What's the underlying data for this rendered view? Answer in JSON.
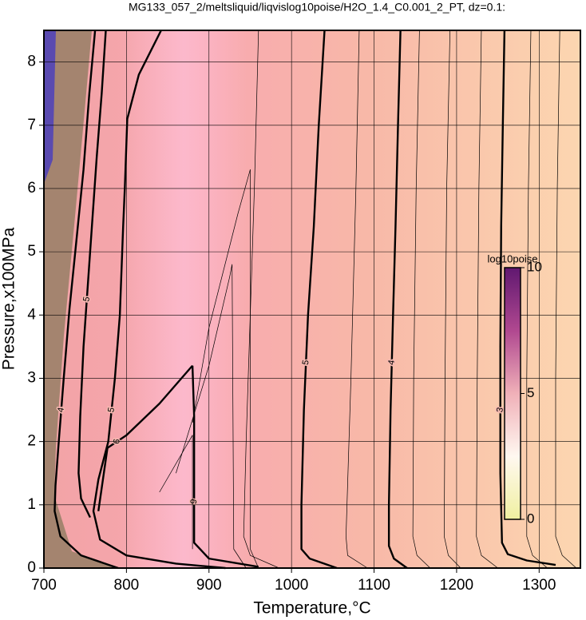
{
  "chart_data": {
    "type": "contour",
    "title": "MG133_057_2/meltsliquid/liqvislog10poise/H2O_1.4_C0.001_2_PT, dz=0.1:",
    "xlabel": "Temperature,°C",
    "ylabel": "Pressure,x100MPa",
    "xlim": [
      700,
      1350
    ],
    "ylim": [
      0,
      8.5
    ],
    "xticks": [
      700,
      800,
      900,
      1000,
      1100,
      1200,
      1300
    ],
    "yticks": [
      0,
      1,
      2,
      3,
      4,
      5,
      6,
      7,
      8
    ],
    "grid": true,
    "colorbar": {
      "label": "log10poise",
      "lim": [
        0,
        10
      ],
      "ticks": [
        0,
        5,
        10
      ],
      "colors": [
        "#f0f0a0",
        "#fff8f0",
        "#f0b0b8",
        "#b04890",
        "#601870"
      ]
    },
    "contours": [
      {
        "level": 3,
        "bold": true,
        "x": [
          1258,
          1256,
          1254,
          1253,
          1253,
          1255,
          1262,
          1285,
          1320
        ],
        "y": [
          8.5,
          7,
          5.4,
          3.5,
          1.5,
          0.4,
          0.22,
          0.12,
          0.05
        ]
      },
      {
        "level": 4,
        "bold": true,
        "x": [
          1132,
          1129,
          1126,
          1123,
          1120,
          1118,
          1118,
          1124,
          1140
        ],
        "y": [
          8.5,
          7,
          5.4,
          4,
          2.5,
          1,
          0.35,
          0.15,
          0
        ]
      },
      {
        "level": 5,
        "bold": true,
        "x": [
          1040,
          1033,
          1027,
          1020,
          1015,
          1012,
          1012,
          1022,
          1055
        ],
        "y": [
          8.5,
          7,
          5.4,
          4,
          2.5,
          1,
          0.3,
          0.15,
          0
        ]
      },
      {
        "level": 5,
        "bold": true,
        "x": [
          842,
          815,
          801,
          798,
          796,
          792,
          786,
          778,
          766,
          760,
          768,
          800,
          860,
          920
        ],
        "y": [
          8.5,
          7.8,
          7.1,
          6,
          5.4,
          4,
          3,
          2,
          1.4,
          0.9,
          0.45,
          0.2,
          0.07,
          0
        ]
      },
      {
        "level": 6,
        "bold": true,
        "x": [
          766,
          777,
          800,
          840,
          880
        ],
        "y": [
          0.9,
          1.9,
          2.1,
          2.6,
          3.2
        ]
      },
      {
        "level": 9,
        "bold": true,
        "x": [
          880,
          882,
          882,
          882,
          900,
          960
        ],
        "y": [
          3.2,
          2.4,
          1.7,
          0.4,
          0.15,
          0.02
        ]
      },
      {
        "level": 4,
        "bold": true,
        "x": [
          762,
          755,
          748,
          738,
          731,
          724,
          718,
          714,
          713,
          720,
          745,
          790
        ],
        "y": [
          8.5,
          7.5,
          6.3,
          5,
          4.1,
          3,
          2,
          1.3,
          0.9,
          0.5,
          0.2,
          0
        ]
      },
      {
        "level": 5,
        "bold": true,
        "x": [
          775,
          770,
          764,
          756,
          748,
          744,
          742,
          745,
          756
        ],
        "y": [
          8.5,
          7.5,
          6.5,
          5,
          3.5,
          2.4,
          1.5,
          1.1,
          0.8
        ]
      },
      {
        "level": 3.5,
        "bold": false,
        "x": [
          1192,
          1188,
          1186,
          1185,
          1190,
          1205
        ],
        "y": [
          8.5,
          6,
          3,
          0.5,
          0.2,
          0
        ]
      },
      {
        "level": 3.8,
        "bold": false,
        "x": [
          1155,
          1151,
          1148,
          1147,
          1152,
          1168
        ],
        "y": [
          8.5,
          6,
          3,
          0.5,
          0.2,
          0
        ]
      },
      {
        "level": 4.5,
        "bold": false,
        "x": [
          1082,
          1078,
          1072,
          1066,
          1068,
          1092
        ],
        "y": [
          8.5,
          6,
          3,
          0.5,
          0.2,
          0
        ]
      },
      {
        "level": 3.2,
        "bold": false,
        "x": [
          1230,
          1227,
          1225,
          1224,
          1230,
          1250
        ],
        "y": [
          8.5,
          6,
          3,
          0.5,
          0.2,
          0
        ]
      },
      {
        "level": 2.8,
        "bold": false,
        "x": [
          1290,
          1287,
          1285,
          1285,
          1292,
          1310
        ],
        "y": [
          8.5,
          6,
          3,
          0.5,
          0.2,
          0
        ]
      },
      {
        "level": 2.6,
        "bold": false,
        "x": [
          1325,
          1322,
          1320,
          1320,
          1328,
          1345
        ],
        "y": [
          8.5,
          6,
          3,
          0.5,
          0.2,
          0
        ]
      },
      {
        "level": 5.5,
        "bold": false,
        "x": [
          960,
          955,
          950,
          945,
          942,
          950,
          985
        ],
        "y": [
          8.5,
          6,
          4,
          2,
          0.5,
          0.2,
          0
        ]
      },
      {
        "level": 6.5,
        "bold": false,
        "x": [
          880,
          900,
          935,
          950,
          950,
          960
        ],
        "y": [
          2.3,
          3.8,
          5.6,
          6.3,
          0.3,
          0
        ]
      },
      {
        "level": 7,
        "bold": false,
        "x": [
          860,
          900,
          925,
          928,
          930,
          945
        ],
        "y": [
          1.5,
          3.2,
          4.6,
          4.8,
          0.3,
          0
        ]
      },
      {
        "level": 8,
        "bold": false,
        "x": [
          840,
          880,
          880
        ],
        "y": [
          1.2,
          2.1,
          0.3
        ]
      }
    ]
  }
}
